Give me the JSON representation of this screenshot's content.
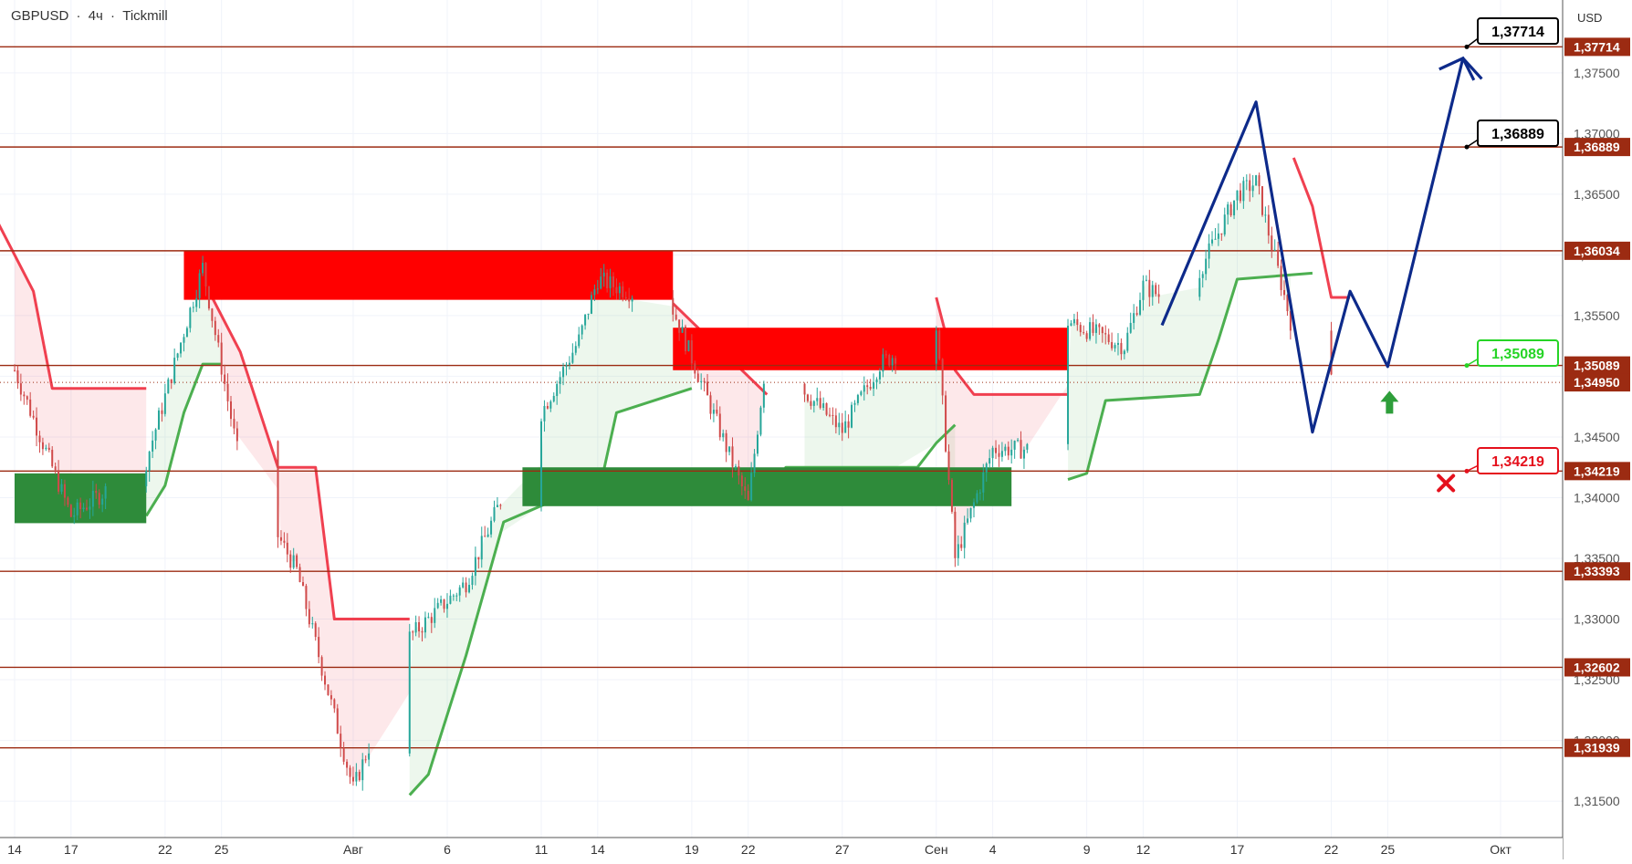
{
  "header": {
    "symbol": "GBPUSD",
    "sep1": "·",
    "timeframe": "4ч",
    "sep2": "·",
    "broker": "Tickmill"
  },
  "currency": "USD",
  "colors": {
    "level_line": "#9c2b12",
    "level_badge": "#9c2b12",
    "supply_zone": "#ff0000",
    "demand_zone": "#2e8b3a",
    "candle_up": "#26a69a",
    "candle_down": "#d04a4a",
    "trend_up": "#4caf50",
    "trend_down": "#f04050",
    "forecast": "#0d2a8a",
    "target_badge": "#000000",
    "entry_badge": "#26d426",
    "stop_badge": "#e5101c",
    "current_price_badge": "#9c2b12"
  },
  "chart_data": {
    "type": "candlestick",
    "instrument": "GBPUSD",
    "timeframe": "4ч",
    "broker": "Tickmill",
    "ylim": [
      1.312,
      1.381
    ],
    "y_ticks": [
      "1,31500",
      "1,32000",
      "1,32500",
      "1,33000",
      "1,33500",
      "1,34000",
      "1,34500",
      "1,35000",
      "1,35500",
      "1,36000",
      "1,36500",
      "1,37000",
      "1,37500"
    ],
    "y_tick_values": [
      1.315,
      1.32,
      1.325,
      1.33,
      1.335,
      1.34,
      1.345,
      1.35,
      1.355,
      1.36,
      1.365,
      1.37,
      1.375
    ],
    "x_ticks": [
      {
        "label": "14",
        "date": "2025-07-14"
      },
      {
        "label": "17",
        "date": "2025-07-17"
      },
      {
        "label": "22",
        "date": "2025-07-22"
      },
      {
        "label": "25",
        "date": "2025-07-25"
      },
      {
        "label": "Авг",
        "date": "2025-08-01"
      },
      {
        "label": "6",
        "date": "2025-08-06"
      },
      {
        "label": "11",
        "date": "2025-08-11"
      },
      {
        "label": "14",
        "date": "2025-08-14"
      },
      {
        "label": "19",
        "date": "2025-08-19"
      },
      {
        "label": "22",
        "date": "2025-08-22"
      },
      {
        "label": "27",
        "date": "2025-08-27"
      },
      {
        "label": "Сен",
        "date": "2025-09-01"
      },
      {
        "label": "4",
        "date": "2025-09-04"
      },
      {
        "label": "9",
        "date": "2025-09-09"
      },
      {
        "label": "12",
        "date": "2025-09-12"
      },
      {
        "label": "17",
        "date": "2025-09-17"
      },
      {
        "label": "22",
        "date": "2025-09-22"
      },
      {
        "label": "25",
        "date": "2025-09-25"
      },
      {
        "label": "Окт",
        "date": "2025-10-01"
      }
    ],
    "levels": [
      {
        "value": 1.37714,
        "label": "1,37714"
      },
      {
        "value": 1.36889,
        "label": "1,36889"
      },
      {
        "value": 1.36034,
        "label": "1,36034"
      },
      {
        "value": 1.35089,
        "label": "1,35089"
      },
      {
        "value": 1.34219,
        "label": "1,34219"
      },
      {
        "value": 1.33393,
        "label": "1,33393"
      },
      {
        "value": 1.32602,
        "label": "1,32602"
      },
      {
        "value": 1.31939,
        "label": "1,31939"
      }
    ],
    "current_price": {
      "value": 1.3495,
      "label": "1,34950"
    },
    "zones": [
      {
        "kind": "supply",
        "from": "2025-07-23",
        "to": "2025-08-18",
        "top": 1.3603,
        "bottom": 1.3563
      },
      {
        "kind": "supply",
        "from": "2025-08-18",
        "to": "2025-09-08",
        "top": 1.354,
        "bottom": 1.3505
      },
      {
        "kind": "demand",
        "from": "2025-07-14",
        "to": "2025-07-21",
        "top": 1.342,
        "bottom": 1.3379
      },
      {
        "kind": "demand",
        "from": "2025-08-10",
        "to": "2025-09-05",
        "top": 1.3425,
        "bottom": 1.3393
      }
    ],
    "forecast_path": [
      {
        "date": "2025-09-13",
        "value": 1.3542
      },
      {
        "date": "2025-09-18",
        "value": 1.3726
      },
      {
        "date": "2025-09-21",
        "value": 1.3454
      },
      {
        "date": "2025-09-23",
        "value": 1.357
      },
      {
        "date": "2025-09-25",
        "value": 1.3508
      },
      {
        "date": "2025-09-29",
        "value": 1.3762
      },
      {
        "date": "2025-09-30",
        "value": 1.3745
      }
    ],
    "annotations": [
      {
        "type": "target",
        "label": "1,37714",
        "value": 1.37714
      },
      {
        "type": "target",
        "label": "1,36889",
        "value": 1.36889
      },
      {
        "type": "entry",
        "label": "1,35089",
        "value": 1.35089
      },
      {
        "type": "stop",
        "label": "1,34219",
        "value": 1.34219
      }
    ],
    "anchor_points": [
      {
        "date": "2025-07-14",
        "value": 1.3505
      },
      {
        "date": "2025-07-17",
        "value": 1.3385
      },
      {
        "date": "2025-07-21",
        "value": 1.343
      },
      {
        "date": "2025-07-24",
        "value": 1.359
      },
      {
        "date": "2025-07-26",
        "value": 1.3425
      },
      {
        "date": "2025-07-29",
        "value": 1.334
      },
      {
        "date": "2025-08-01",
        "value": 1.316
      },
      {
        "date": "2025-08-04",
        "value": 1.3285
      },
      {
        "date": "2025-08-07",
        "value": 1.333
      },
      {
        "date": "2025-08-10",
        "value": 1.344
      },
      {
        "date": "2025-08-13",
        "value": 1.353
      },
      {
        "date": "2025-08-14",
        "value": 1.358
      },
      {
        "date": "2025-08-18",
        "value": 1.3555
      },
      {
        "date": "2025-08-20",
        "value": 1.3475
      },
      {
        "date": "2025-08-22",
        "value": 1.3395
      },
      {
        "date": "2025-08-23",
        "value": 1.352
      },
      {
        "date": "2025-08-27",
        "value": 1.3455
      },
      {
        "date": "2025-08-29",
        "value": 1.351
      },
      {
        "date": "2025-09-01",
        "value": 1.354
      },
      {
        "date": "2025-09-02",
        "value": 1.335
      },
      {
        "date": "2025-09-04",
        "value": 1.344
      },
      {
        "date": "2025-09-06",
        "value": 1.344
      },
      {
        "date": "2025-09-08",
        "value": 1.3545
      },
      {
        "date": "2025-09-11",
        "value": 1.3525
      },
      {
        "date": "2025-09-12",
        "value": 1.3575
      },
      {
        "date": "2025-09-14",
        "value": 1.3555
      },
      {
        "date": "2025-09-17",
        "value": 1.365
      },
      {
        "date": "2025-09-18",
        "value": 1.366
      },
      {
        "date": "2025-09-20",
        "value": 1.3535
      },
      {
        "date": "2025-09-21",
        "value": 1.347
      },
      {
        "date": "2025-09-22",
        "value": 1.3495
      }
    ],
    "trend_segments": [
      {
        "dir": "down",
        "points": [
          [
            "2025-07-13",
            1.363
          ],
          [
            "2025-07-15",
            1.357
          ],
          [
            "2025-07-16",
            1.349
          ],
          [
            "2025-07-21",
            1.349
          ]
        ]
      },
      {
        "dir": "up",
        "points": [
          [
            "2025-07-21",
            1.3385
          ],
          [
            "2025-07-22",
            1.341
          ],
          [
            "2025-07-23",
            1.347
          ],
          [
            "2025-07-24",
            1.351
          ],
          [
            "2025-07-25",
            1.351
          ]
        ]
      },
      {
        "dir": "down",
        "points": [
          [
            "2025-07-24",
            1.358
          ],
          [
            "2025-07-26",
            1.352
          ],
          [
            "2025-07-28",
            1.3425
          ],
          [
            "2025-07-30",
            1.3425
          ],
          [
            "2025-07-31",
            1.33
          ],
          [
            "2025-08-04",
            1.33
          ]
        ]
      },
      {
        "dir": "up",
        "points": [
          [
            "2025-08-04",
            1.3155
          ],
          [
            "2025-08-05",
            1.3172
          ],
          [
            "2025-08-07",
            1.327
          ],
          [
            "2025-08-09",
            1.338
          ],
          [
            "2025-08-12",
            1.34
          ],
          [
            "2025-08-14",
            1.34
          ],
          [
            "2025-08-15",
            1.347
          ],
          [
            "2025-08-19",
            1.349
          ]
        ]
      },
      {
        "dir": "down",
        "points": [
          [
            "2025-08-18",
            1.356
          ],
          [
            "2025-08-20",
            1.353
          ],
          [
            "2025-08-22",
            1.35
          ],
          [
            "2025-08-23",
            1.3485
          ]
        ]
      },
      {
        "dir": "up",
        "points": [
          [
            "2025-08-23",
            1.3395
          ],
          [
            "2025-08-24",
            1.3425
          ],
          [
            "2025-08-31",
            1.3425
          ],
          [
            "2025-09-01",
            1.3445
          ],
          [
            "2025-09-02",
            1.346
          ]
        ]
      },
      {
        "dir": "down",
        "points": [
          [
            "2025-09-01",
            1.3565
          ],
          [
            "2025-09-02",
            1.3505
          ],
          [
            "2025-09-03",
            1.3485
          ],
          [
            "2025-09-08",
            1.3485
          ]
        ]
      },
      {
        "dir": "up",
        "points": [
          [
            "2025-09-08",
            1.3415
          ],
          [
            "2025-09-09",
            1.342
          ],
          [
            "2025-09-10",
            1.348
          ],
          [
            "2025-09-15",
            1.3485
          ],
          [
            "2025-09-16",
            1.353
          ],
          [
            "2025-09-17",
            1.358
          ],
          [
            "2025-09-21",
            1.3585
          ]
        ]
      },
      {
        "dir": "down",
        "points": [
          [
            "2025-09-20",
            1.368
          ],
          [
            "2025-09-21",
            1.364
          ],
          [
            "2025-09-22",
            1.3565
          ],
          [
            "2025-09-23",
            1.3565
          ]
        ]
      }
    ]
  }
}
